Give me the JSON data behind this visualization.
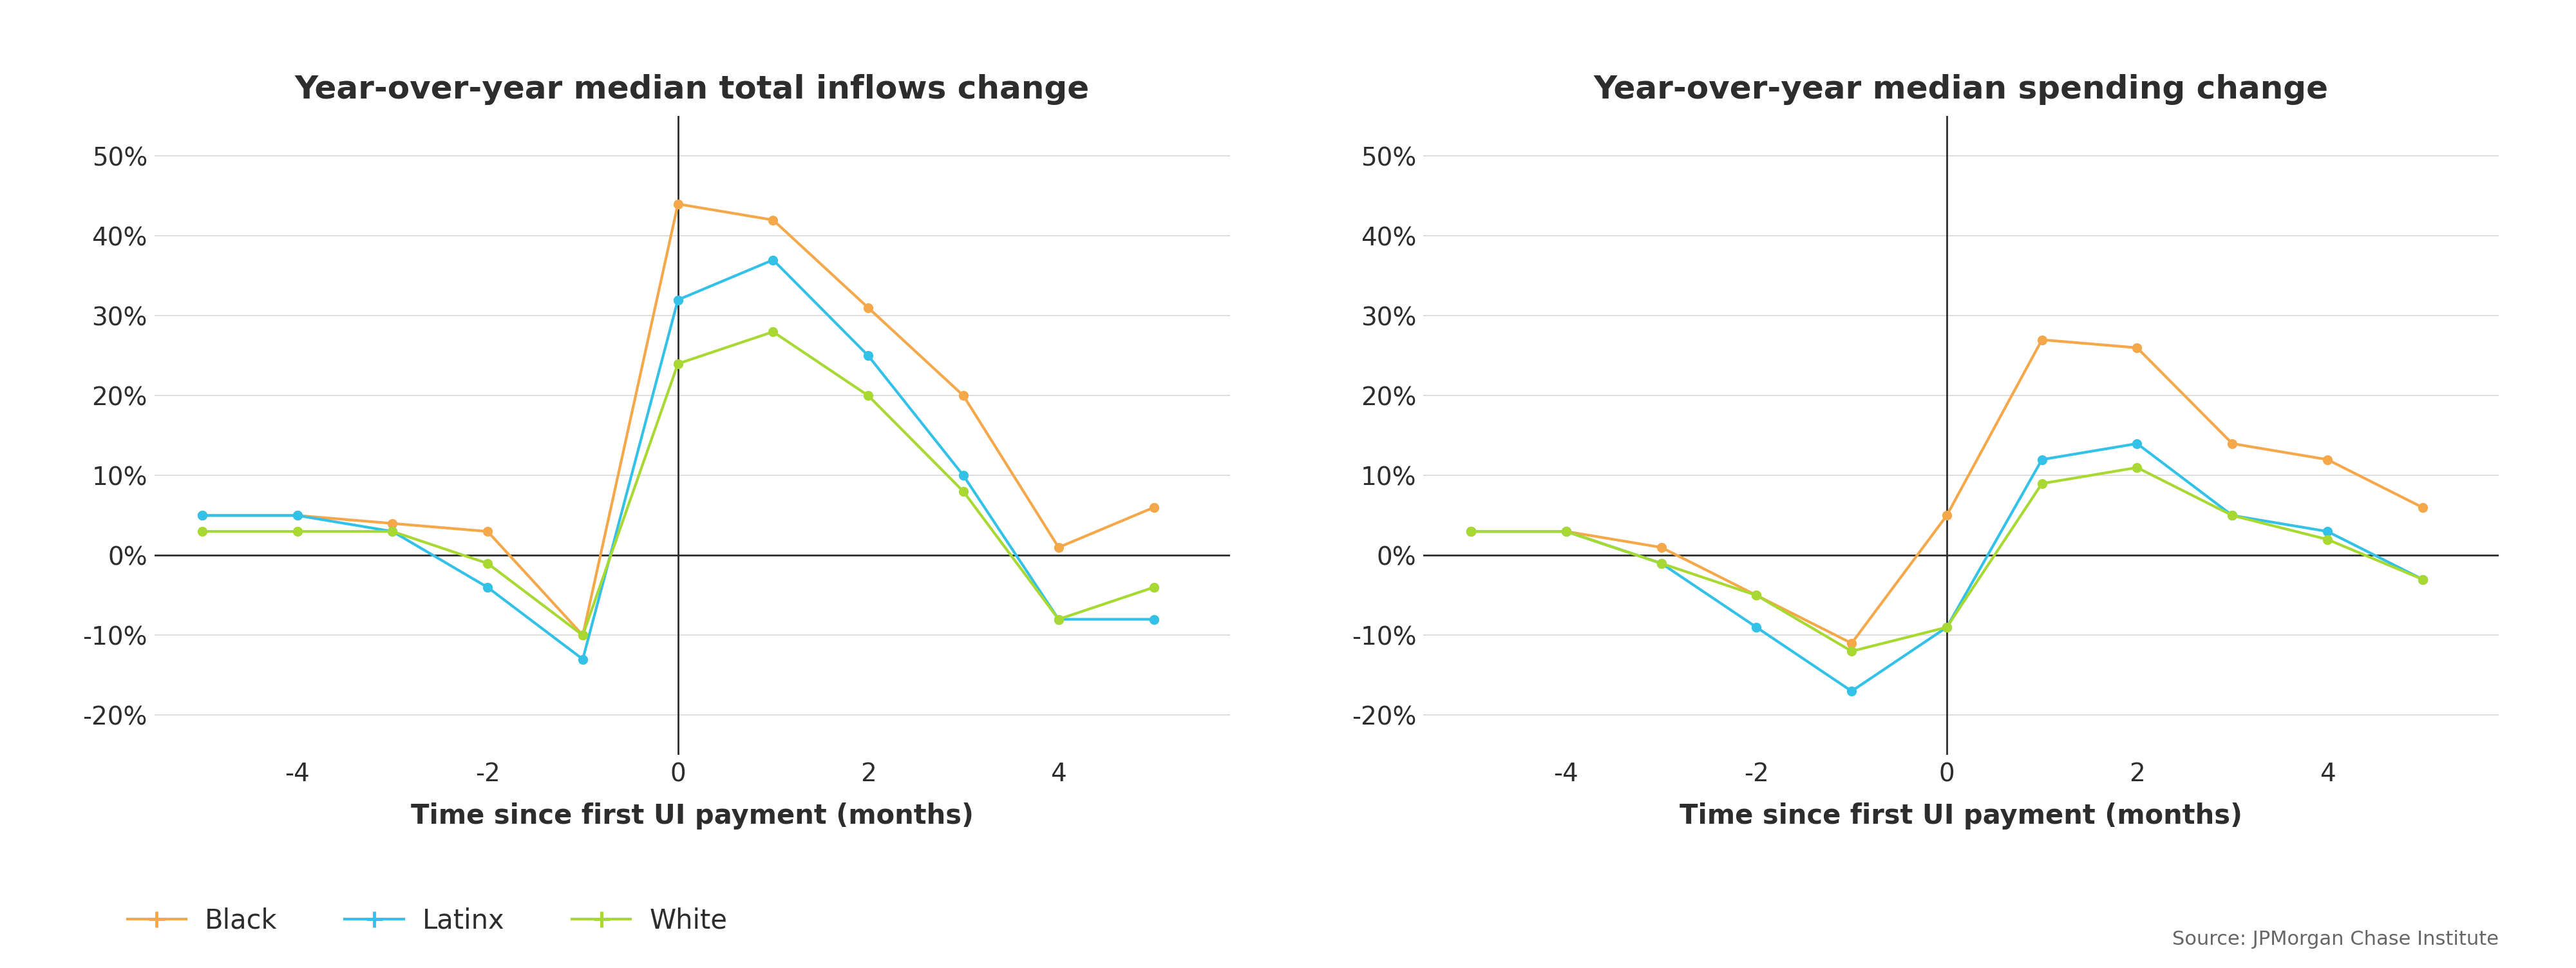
{
  "x": [
    -5,
    -4,
    -3,
    -2,
    -1,
    0,
    1,
    2,
    3,
    4,
    5
  ],
  "inflows": {
    "Black": [
      0.05,
      0.05,
      0.04,
      0.03,
      -0.1,
      0.44,
      0.42,
      0.31,
      0.2,
      0.01,
      0.06
    ],
    "Latinx": [
      0.05,
      0.05,
      0.03,
      -0.04,
      -0.13,
      0.32,
      0.37,
      0.25,
      0.1,
      -0.08,
      -0.08
    ],
    "White": [
      0.03,
      0.03,
      0.03,
      -0.01,
      -0.1,
      0.24,
      0.28,
      0.2,
      0.08,
      -0.08,
      -0.04
    ]
  },
  "spending": {
    "Black": [
      0.03,
      0.03,
      0.01,
      -0.05,
      -0.11,
      0.05,
      0.27,
      0.26,
      0.14,
      0.12,
      0.06
    ],
    "Latinx": [
      0.03,
      0.03,
      -0.01,
      -0.09,
      -0.17,
      -0.09,
      0.12,
      0.14,
      0.05,
      0.03,
      -0.03
    ],
    "White": [
      0.03,
      0.03,
      -0.01,
      -0.05,
      -0.12,
      -0.09,
      0.09,
      0.11,
      0.05,
      0.02,
      -0.03
    ]
  },
  "colors": {
    "Black": "#F5A84A",
    "Latinx": "#33C1E8",
    "White": "#A8D832"
  },
  "title_inflows": "Year-over-year median total inflows change",
  "title_spending": "Year-over-year median spending change",
  "xlabel": "Time since first UI payment (months)",
  "source": "Source: JPMorgan Chase Institute",
  "ylim": [
    -0.25,
    0.55
  ],
  "yticks": [
    -0.2,
    -0.1,
    0.0,
    0.1,
    0.2,
    0.3,
    0.4,
    0.5
  ],
  "xticks": [
    -4,
    -2,
    0,
    2,
    4
  ],
  "background_color": "#FFFFFF",
  "grid_color": "#D8D8D8",
  "text_color": "#2d2d2d",
  "marker_size": 10,
  "line_width": 3.0,
  "title_fontsize": 36,
  "label_fontsize": 30,
  "tick_fontsize": 28,
  "legend_fontsize": 30,
  "source_fontsize": 22
}
